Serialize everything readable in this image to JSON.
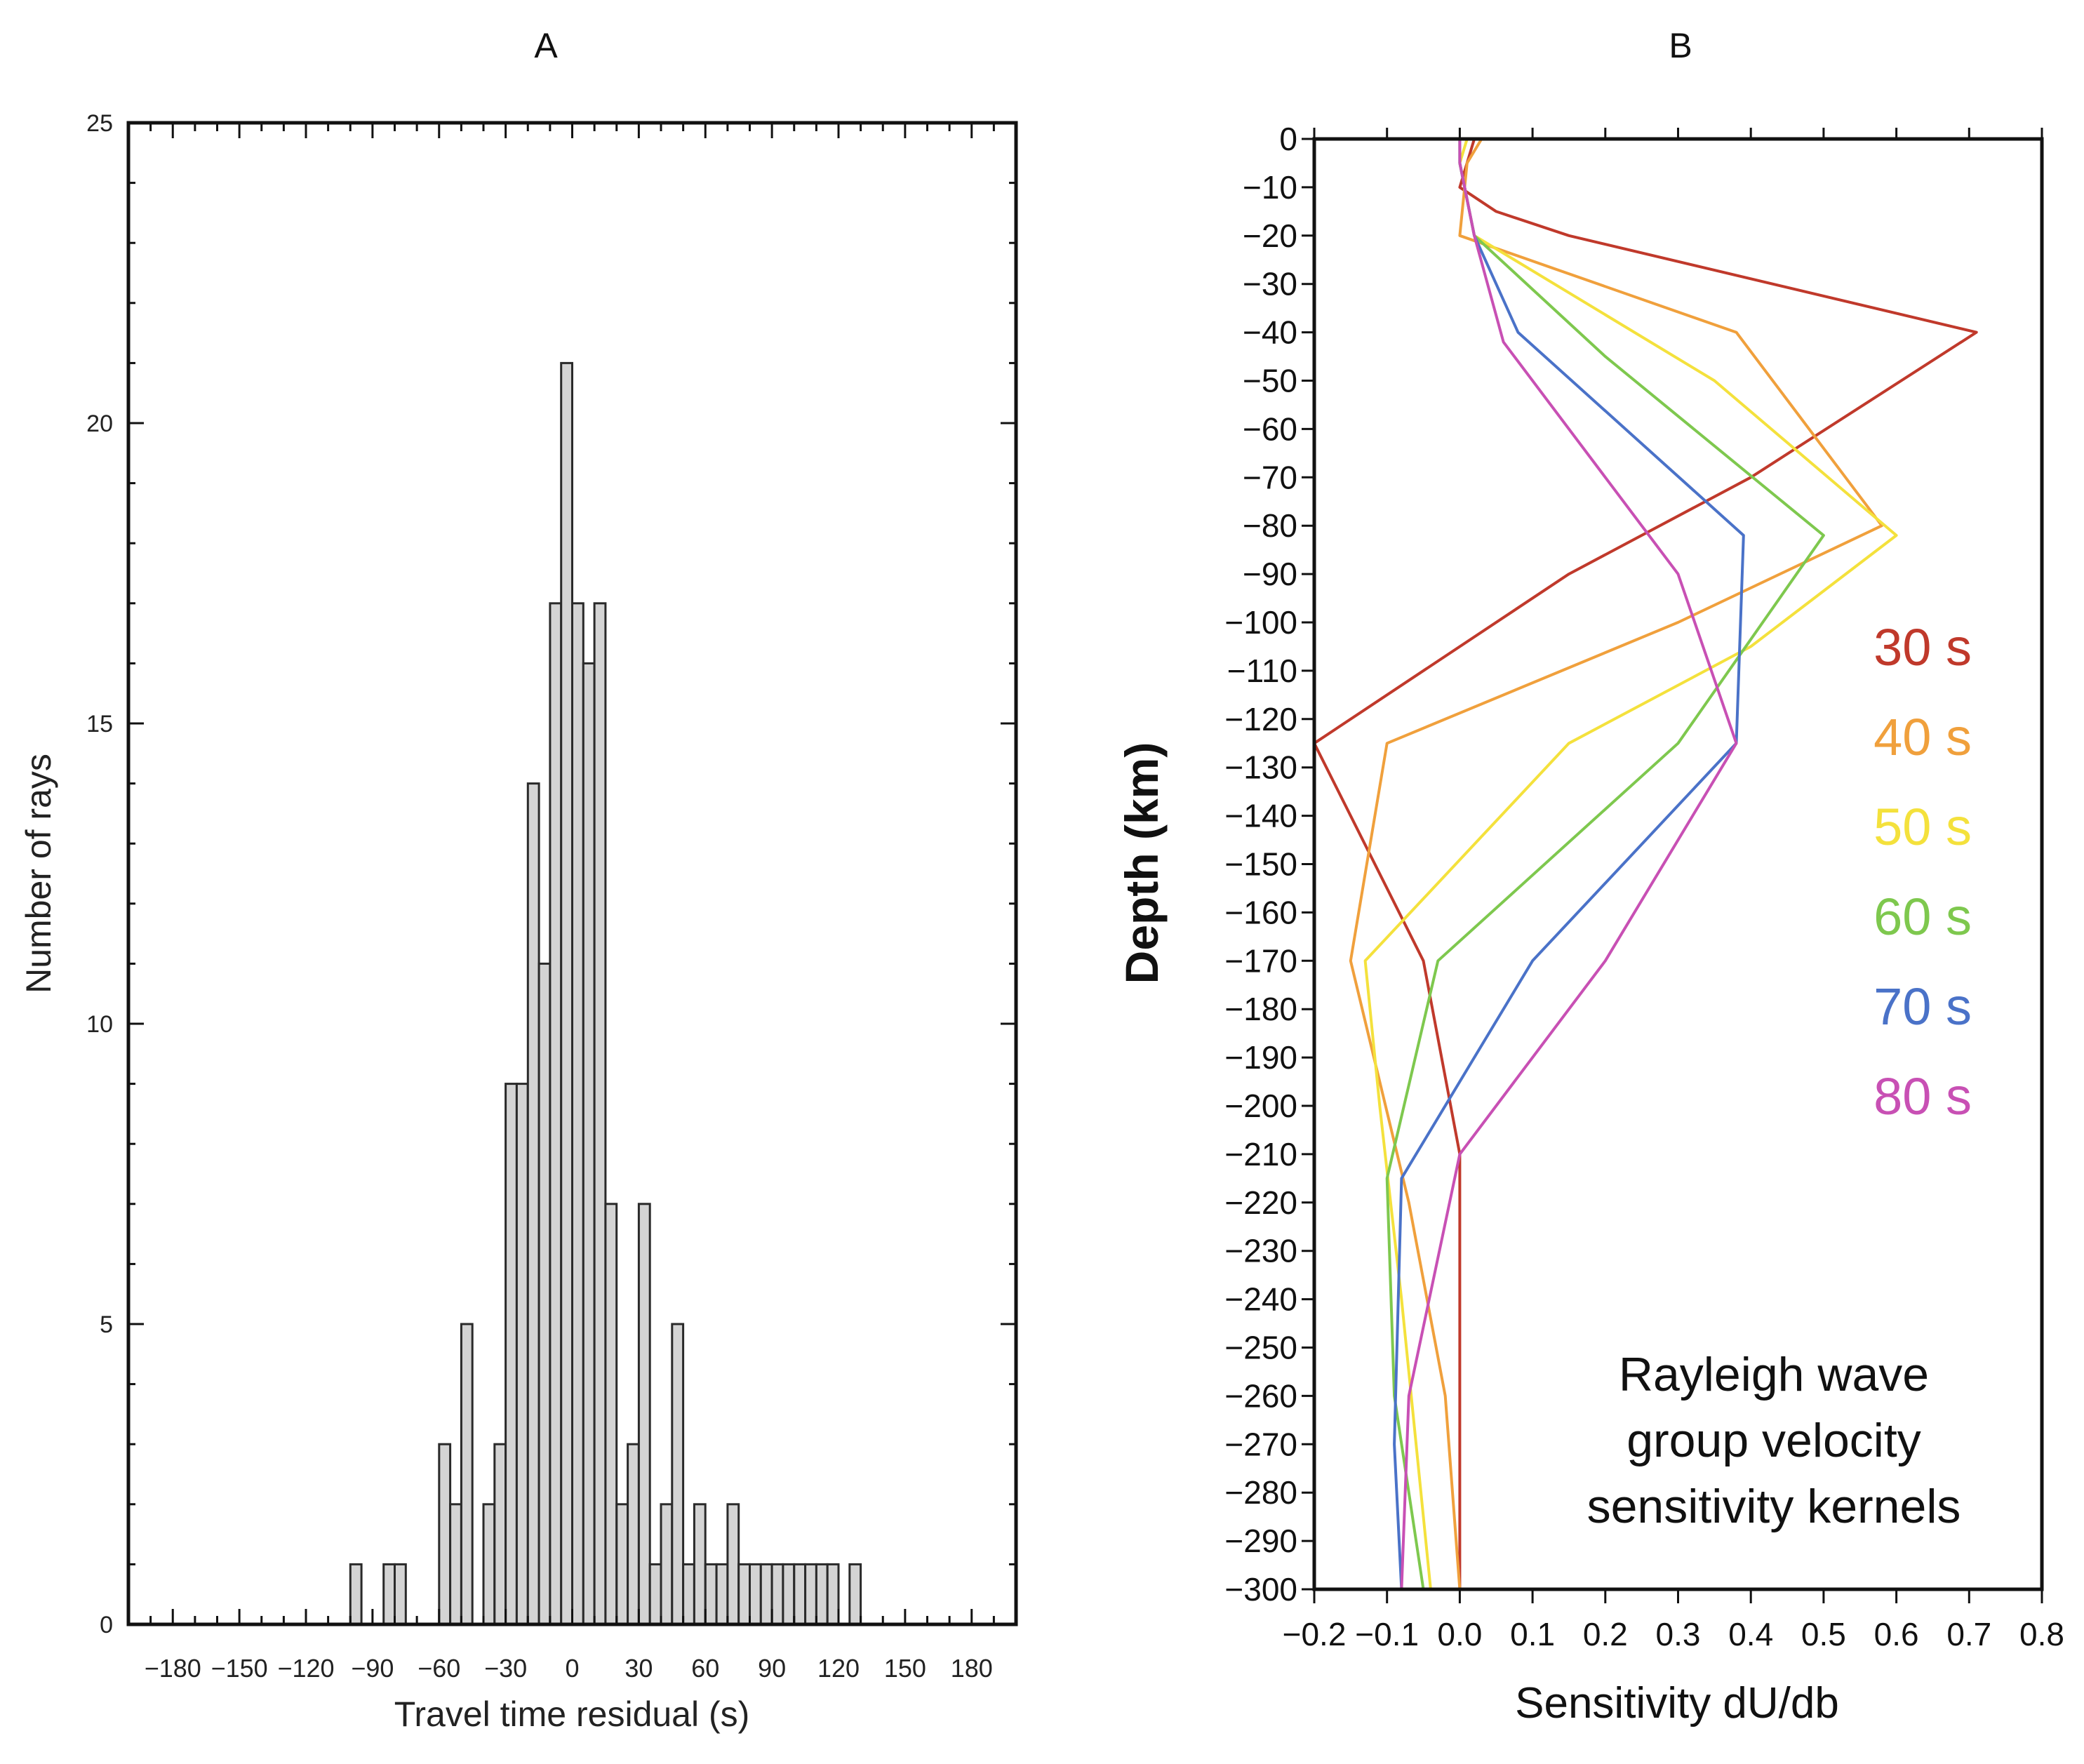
{
  "chart_data": [
    {
      "panel_label": "A",
      "type": "bar",
      "title": "",
      "xlabel": "Travel time residual (s)",
      "ylabel": "Number of rays",
      "xlim": [
        -200,
        200
      ],
      "ylim": [
        0,
        25
      ],
      "bin_width": 5,
      "xticks": [
        -180,
        -150,
        -120,
        -90,
        -60,
        -30,
        0,
        30,
        60,
        90,
        120,
        150,
        180
      ],
      "xtick_labels": [
        "−180",
        "−150",
        "−120",
        "−90",
        "−60",
        "−30",
        "0",
        "30",
        "60",
        "90",
        "120",
        "150",
        "180"
      ],
      "yticks": [
        0,
        5,
        10,
        15,
        20,
        25
      ],
      "ytick_labels": [
        "0",
        "5",
        "10",
        "15",
        "20",
        "25"
      ],
      "x": [
        -100,
        -85,
        -80,
        -60,
        -55,
        -50,
        -40,
        -35,
        -30,
        -25,
        -20,
        -15,
        -10,
        -5,
        0,
        5,
        10,
        15,
        20,
        25,
        30,
        35,
        40,
        45,
        50,
        55,
        60,
        65,
        70,
        75,
        80,
        85,
        90,
        95,
        100,
        105,
        110,
        115,
        125
      ],
      "values": [
        1,
        1,
        1,
        3,
        2,
        5,
        2,
        3,
        9,
        9,
        14,
        11,
        17,
        21,
        17,
        16,
        17,
        7,
        2,
        3,
        7,
        1,
        2,
        5,
        1,
        2,
        1,
        1,
        2,
        1,
        1,
        1,
        1,
        1,
        1,
        1,
        1,
        1,
        1
      ],
      "bar_color": "#d4d4d4",
      "edge_color": "#2a2a2a",
      "grid": false
    },
    {
      "panel_label": "B",
      "type": "line",
      "title": "",
      "xlabel": "Sensitivity dU/db",
      "ylabel": "Depth (km)",
      "xlim": [
        -0.2,
        0.8
      ],
      "ylim": [
        -300,
        0
      ],
      "xticks": [
        -0.2,
        -0.1,
        0.0,
        0.1,
        0.2,
        0.3,
        0.4,
        0.5,
        0.6,
        0.7,
        0.8
      ],
      "xtick_labels": [
        "−0.2",
        "−0.1",
        "0.0",
        "0.1",
        "0.2",
        "0.3",
        "0.4",
        "0.5",
        "0.6",
        "0.7",
        "0.8"
      ],
      "yticks": [
        0,
        -10,
        -20,
        -30,
        -40,
        -50,
        -60,
        -70,
        -80,
        -90,
        -100,
        -110,
        -120,
        -130,
        -140,
        -150,
        -160,
        -170,
        -180,
        -190,
        -200,
        -210,
        -220,
        -230,
        -240,
        -250,
        -260,
        -270,
        -280,
        -290,
        -300
      ],
      "ytick_labels": [
        "0",
        "−10",
        "−20",
        "−30",
        "−40",
        "−50",
        "−60",
        "−70",
        "−80",
        "−90",
        "−100",
        "−110",
        "−120",
        "−130",
        "−140",
        "−150",
        "−160",
        "−170",
        "−180",
        "−190",
        "−200",
        "−210",
        "−220",
        "−230",
        "−240",
        "−250",
        "−260",
        "−270",
        "−280",
        "−290",
        "−300"
      ],
      "grid": false,
      "legend_placement": "right",
      "annotation": [
        "Rayleigh wave",
        "group velocity",
        "sensitivity kernels"
      ],
      "series": [
        {
          "name": "30 s",
          "color": "#c0392b",
          "x": [
            0.02,
            0.0,
            0.05,
            0.15,
            0.71,
            0.4,
            0.15,
            -0.2,
            -0.05,
            0.0,
            0.0,
            0.0
          ],
          "y": [
            0,
            -10,
            -15,
            -20,
            -40,
            -70,
            -90,
            -125,
            -170,
            -210,
            -250,
            -300
          ]
        },
        {
          "name": "40 s",
          "color": "#f0a03c",
          "x": [
            0.03,
            0.01,
            0.0,
            0.38,
            0.58,
            0.3,
            -0.1,
            -0.15,
            -0.07,
            -0.02,
            0.0
          ],
          "y": [
            0,
            -5,
            -20,
            -40,
            -80,
            -100,
            -125,
            -170,
            -220,
            -260,
            -300
          ]
        },
        {
          "name": "50 s",
          "color": "#f4e13c",
          "x": [
            0.01,
            0.0,
            0.02,
            0.35,
            0.6,
            0.4,
            0.15,
            -0.13,
            -0.11,
            -0.08,
            -0.04
          ],
          "y": [
            0,
            -5,
            -20,
            -50,
            -82,
            -105,
            -125,
            -170,
            -200,
            -240,
            -300
          ]
        },
        {
          "name": "60 s",
          "color": "#7ec84e",
          "x": [
            0.0,
            0.0,
            0.02,
            0.2,
            0.5,
            0.3,
            -0.03,
            -0.1,
            -0.09,
            -0.05
          ],
          "y": [
            0,
            -5,
            -20,
            -45,
            -82,
            -125,
            -170,
            -215,
            -260,
            -300
          ]
        },
        {
          "name": "70 s",
          "color": "#4a72c8",
          "x": [
            0.0,
            0.0,
            0.02,
            0.08,
            0.39,
            0.38,
            0.1,
            -0.08,
            -0.09,
            -0.08
          ],
          "y": [
            0,
            -5,
            -20,
            -40,
            -82,
            -125,
            -170,
            -215,
            -270,
            -300
          ]
        },
        {
          "name": "80 s",
          "color": "#c850b4",
          "x": [
            0.0,
            0.0,
            0.02,
            0.06,
            0.3,
            0.38,
            0.2,
            0.0,
            -0.07,
            -0.08
          ],
          "y": [
            0,
            -5,
            -20,
            -42,
            -90,
            -125,
            -170,
            -210,
            -260,
            -300
          ]
        }
      ]
    }
  ]
}
